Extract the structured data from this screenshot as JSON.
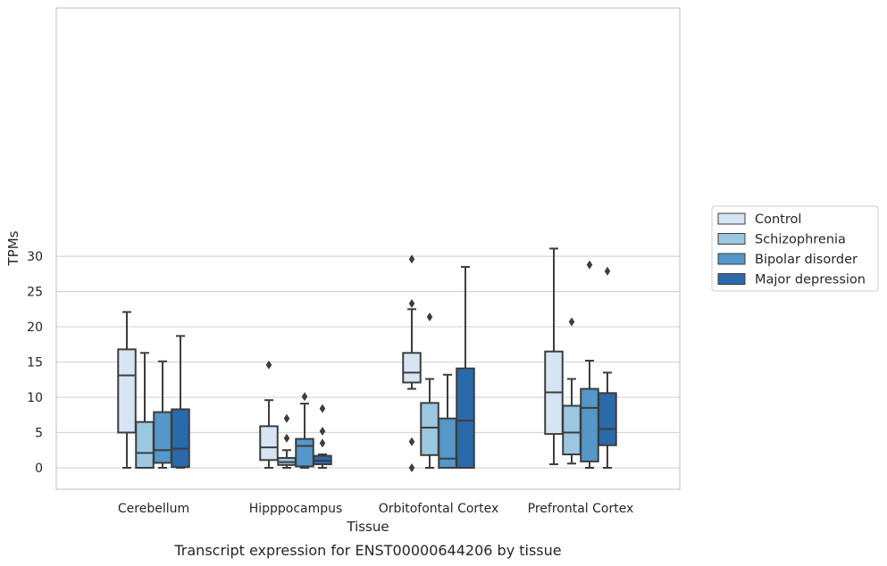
{
  "chart_data": {
    "type": "box",
    "caption": "Transcript expression for ENST00000644206 by tissue",
    "xlabel": "Tissue",
    "ylabel": "TPMs",
    "ylim": [
      -1.5,
      32.5
    ],
    "yticks": [
      0,
      5,
      10,
      15,
      20,
      25,
      30
    ],
    "grid": "horizontal",
    "legend_position": "right",
    "categories": [
      "Cerebellum",
      "Hipppocampus",
      "Orbitofontal Cortex",
      "Prefrontal Cortex"
    ],
    "series": [
      {
        "name": "Control",
        "color": "#d6e5f4",
        "boxes": [
          {
            "whisker_low": 0.0,
            "q1": 5.0,
            "median": 13.1,
            "q3": 16.8,
            "whisker_high": 22.1,
            "outliers": []
          },
          {
            "whisker_low": 0.0,
            "q1": 1.1,
            "median": 2.9,
            "q3": 5.9,
            "whisker_high": 9.6,
            "outliers": [
              14.6
            ]
          },
          {
            "whisker_low": 11.2,
            "q1": 12.1,
            "median": 13.5,
            "q3": 16.3,
            "whisker_high": 22.5,
            "outliers": [
              0.0,
              3.7,
              23.3,
              29.6
            ]
          },
          {
            "whisker_low": 0.5,
            "q1": 4.8,
            "median": 10.7,
            "q3": 16.5,
            "whisker_high": 31.1,
            "outliers": []
          }
        ]
      },
      {
        "name": "Schizophrenia",
        "color": "#9cc7e1",
        "boxes": [
          {
            "whisker_low": 0.0,
            "q1": 0.0,
            "median": 2.1,
            "q3": 6.5,
            "whisker_high": 16.3,
            "outliers": []
          },
          {
            "whisker_low": 0.0,
            "q1": 0.4,
            "median": 0.8,
            "q3": 1.4,
            "whisker_high": 2.5,
            "outliers": [
              4.2,
              7.0
            ]
          },
          {
            "whisker_low": 0.0,
            "q1": 1.8,
            "median": 5.7,
            "q3": 9.2,
            "whisker_high": 12.6,
            "outliers": [
              21.4
            ]
          },
          {
            "whisker_low": 0.6,
            "q1": 1.9,
            "median": 5.0,
            "q3": 8.8,
            "whisker_high": 12.6,
            "outliers": [
              20.7
            ]
          }
        ]
      },
      {
        "name": "Bipolar disorder",
        "color": "#5497c8",
        "boxes": [
          {
            "whisker_low": 0.0,
            "q1": 0.7,
            "median": 2.5,
            "q3": 7.9,
            "whisker_high": 15.1,
            "outliers": []
          },
          {
            "whisker_low": 0.0,
            "q1": 0.2,
            "median": 3.1,
            "q3": 4.1,
            "whisker_high": 9.1,
            "outliers": [
              10.1
            ]
          },
          {
            "whisker_low": 0.0,
            "q1": 0.0,
            "median": 1.3,
            "q3": 7.0,
            "whisker_high": 13.2,
            "outliers": []
          },
          {
            "whisker_low": 0.0,
            "q1": 0.9,
            "median": 8.5,
            "q3": 11.2,
            "whisker_high": 15.2,
            "outliers": [
              28.8
            ]
          }
        ]
      },
      {
        "name": "Major depression",
        "color": "#2a6aab",
        "boxes": [
          {
            "whisker_low": 0.0,
            "q1": 0.1,
            "median": 2.7,
            "q3": 8.3,
            "whisker_high": 18.7,
            "outliers": []
          },
          {
            "whisker_low": 0.0,
            "q1": 0.5,
            "median": 1.0,
            "q3": 1.7,
            "whisker_high": 1.9,
            "outliers": [
              3.5,
              5.2,
              8.4
            ]
          },
          {
            "whisker_low": 0.0,
            "q1": 0.0,
            "median": 6.7,
            "q3": 14.1,
            "whisker_high": 28.5,
            "outliers": []
          },
          {
            "whisker_low": 0.0,
            "q1": 3.2,
            "median": 5.5,
            "q3": 10.6,
            "whisker_high": 13.5,
            "outliers": [
              27.9
            ]
          }
        ]
      }
    ]
  }
}
